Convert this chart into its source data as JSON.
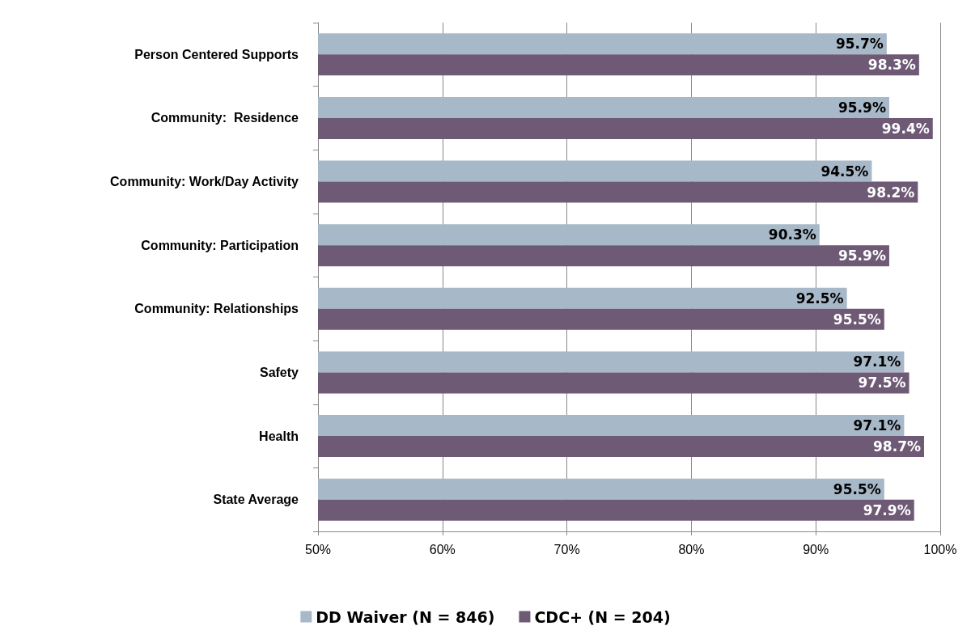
{
  "chart_data": {
    "type": "bar",
    "orientation": "horizontal",
    "categories": [
      "Person Centered Supports",
      "Community:  Residence",
      "Community: Work/Day Activity",
      "Community: Participation",
      "Community: Relationships",
      "Safety",
      "Health",
      "State Average"
    ],
    "series": [
      {
        "name": "DD Waiver (N = 846)",
        "color": "#a7b8c8",
        "values": [
          95.7,
          95.9,
          94.5,
          90.3,
          92.5,
          97.1,
          97.1,
          95.5
        ],
        "value_labels": [
          "95.7%",
          "95.9%",
          "94.5%",
          "90.3%",
          "92.5%",
          "97.1%",
          "97.1%",
          "95.5%"
        ]
      },
      {
        "name": "CDC+ (N = 204)",
        "color": "#6e5a75",
        "values": [
          98.3,
          99.4,
          98.2,
          95.9,
          95.5,
          97.5,
          98.7,
          97.9
        ],
        "value_labels": [
          "98.3%",
          "99.4%",
          "98.2%",
          "95.9%",
          "95.5%",
          "97.5%",
          "98.7%",
          "97.9%"
        ]
      }
    ],
    "xlim": [
      50,
      100
    ],
    "xticks": [
      {
        "value": 50,
        "label": "50%"
      },
      {
        "value": 60,
        "label": "60%"
      },
      {
        "value": 70,
        "label": "70%"
      },
      {
        "value": 80,
        "label": "80%"
      },
      {
        "value": 90,
        "label": "90%"
      },
      {
        "value": 100,
        "label": "100%"
      }
    ],
    "grid": "x",
    "legend": "bottom"
  }
}
